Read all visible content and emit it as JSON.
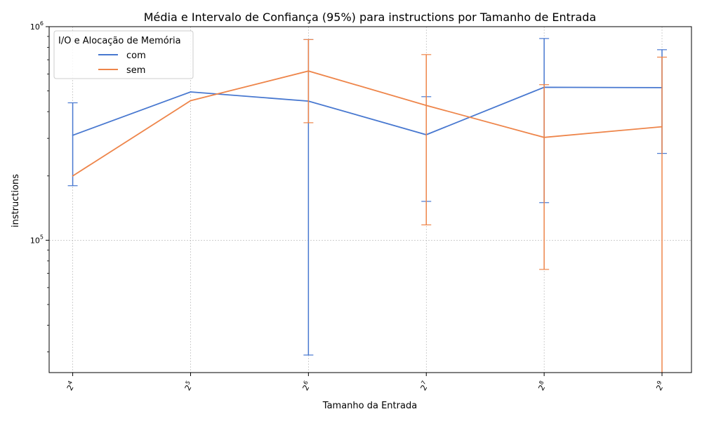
{
  "chart_data": {
    "type": "line",
    "title": "Média e Intervalo de Confiança (95%) para instructions por Tamanho de Entrada",
    "xlabel": "Tamanho da Entrada",
    "ylabel": "instructions",
    "x": [
      4,
      5,
      6,
      7,
      8,
      9
    ],
    "x_tick_labels": [
      {
        "base": "2",
        "exp": "4"
      },
      {
        "base": "2",
        "exp": "5"
      },
      {
        "base": "2",
        "exp": "6"
      },
      {
        "base": "2",
        "exp": "7"
      },
      {
        "base": "2",
        "exp": "8"
      },
      {
        "base": "2",
        "exp": "9"
      }
    ],
    "y_scale": "log",
    "ylim": [
      24000,
      1000000
    ],
    "y_tick_labels": [
      {
        "value": 100000,
        "base": "10",
        "exp": "5"
      },
      {
        "value": 1000000,
        "base": "10",
        "exp": "6"
      }
    ],
    "grid": true,
    "legend": {
      "title": "I/O e Alocação de Memória",
      "position": "top-left"
    },
    "series": [
      {
        "name": "com",
        "color": "#4878d0",
        "values": [
          310000,
          495000,
          448000,
          312000,
          520000,
          518000
        ],
        "ci_lower": [
          180000,
          null,
          29000,
          152000,
          150000,
          255000
        ],
        "ci_upper": [
          440000,
          null,
          870000,
          470000,
          880000,
          780000
        ]
      },
      {
        "name": "sem",
        "color": "#ee854a",
        "values": [
          200000,
          450000,
          620000,
          428000,
          303000,
          340000
        ],
        "ci_lower": [
          null,
          null,
          355000,
          118000,
          73000,
          1000
        ],
        "ci_upper": [
          null,
          null,
          870000,
          740000,
          535000,
          720000
        ]
      }
    ]
  }
}
